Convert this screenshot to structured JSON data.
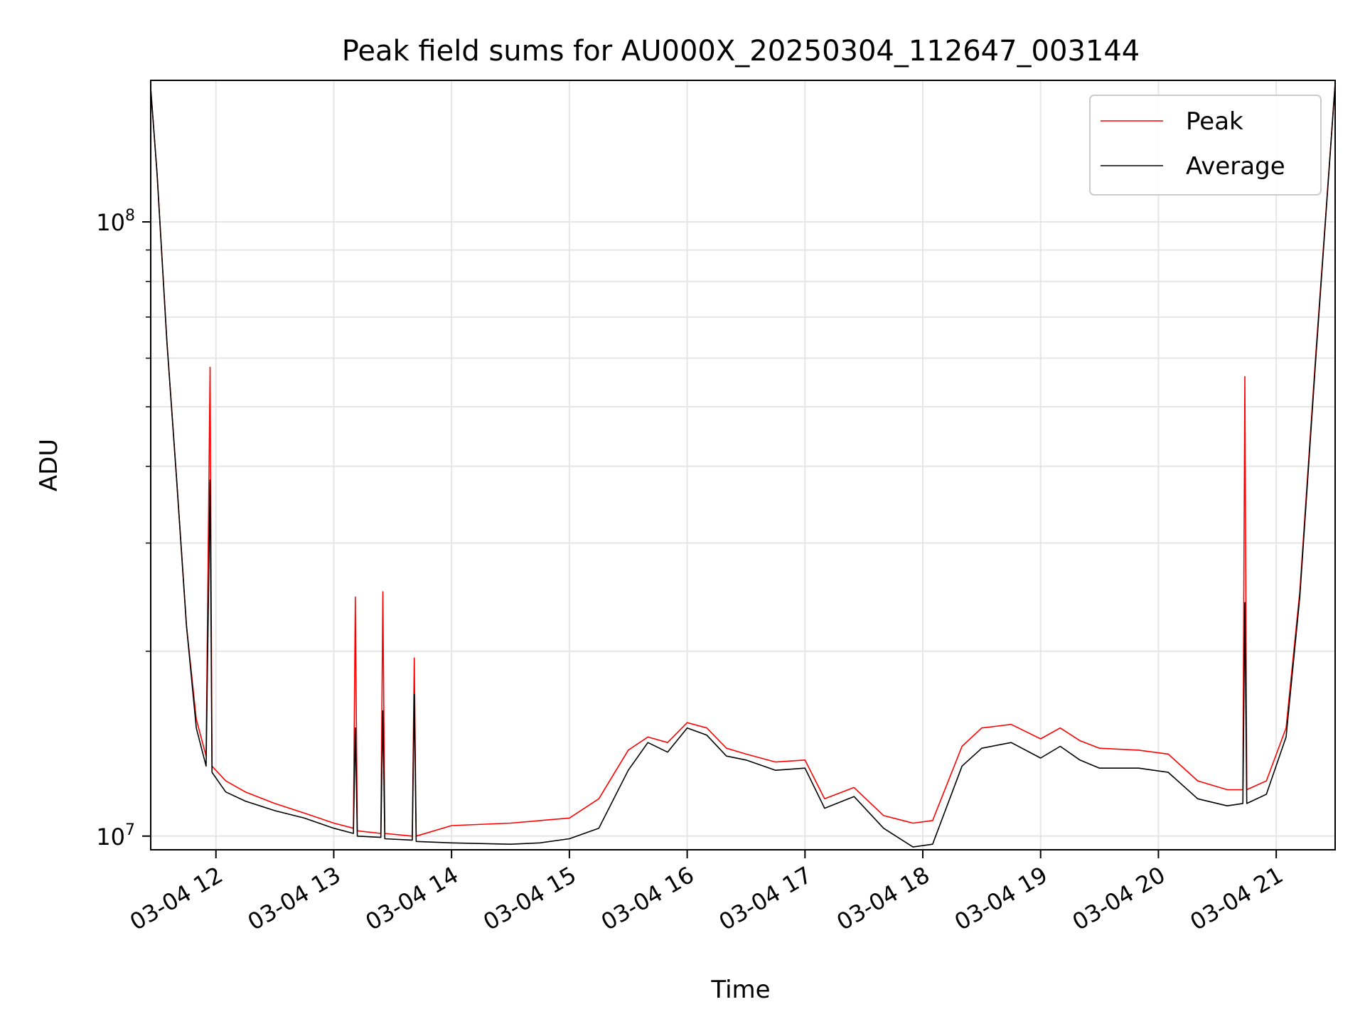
{
  "chart_data": {
    "type": "line",
    "title": "Peak field sums for AU000X_20250304_112647_003144",
    "xlabel": "Time",
    "ylabel": "ADU",
    "x_is_datetime": true,
    "xlim": [
      "2025-03-04T11:26:47",
      "2025-03-04T21:30:00"
    ],
    "ylim": [
      9500000,
      170000000
    ],
    "yscale": "log",
    "grid": true,
    "legend_position": "top-right",
    "x_ticks": [
      {
        "value": "2025-03-04T12:00:00",
        "label": "03-04 12"
      },
      {
        "value": "2025-03-04T13:00:00",
        "label": "03-04 13"
      },
      {
        "value": "2025-03-04T14:00:00",
        "label": "03-04 14"
      },
      {
        "value": "2025-03-04T15:00:00",
        "label": "03-04 15"
      },
      {
        "value": "2025-03-04T16:00:00",
        "label": "03-04 16"
      },
      {
        "value": "2025-03-04T17:00:00",
        "label": "03-04 17"
      },
      {
        "value": "2025-03-04T18:00:00",
        "label": "03-04 18"
      },
      {
        "value": "2025-03-04T19:00:00",
        "label": "03-04 19"
      },
      {
        "value": "2025-03-04T20:00:00",
        "label": "03-04 20"
      },
      {
        "value": "2025-03-04T21:00:00",
        "label": "03-04 21"
      }
    ],
    "y_ticks": [
      {
        "value": 10000000,
        "base": "10",
        "exp": "7"
      },
      {
        "value": 100000000,
        "base": "10",
        "exp": "8"
      }
    ],
    "series": [
      {
        "name": "Peak",
        "color": "#ff0000",
        "points": [
          [
            "2025-03-04T11:26:47",
            165000000
          ],
          [
            "2025-03-04T11:30:00",
            120000000
          ],
          [
            "2025-03-04T11:35:00",
            64000000
          ],
          [
            "2025-03-04T11:40:00",
            38000000
          ],
          [
            "2025-03-04T11:45:00",
            22000000
          ],
          [
            "2025-03-04T11:50:00",
            15500000
          ],
          [
            "2025-03-04T11:55:00",
            13500000
          ],
          [
            "2025-03-04T11:57:00",
            58000000
          ],
          [
            "2025-03-04T11:58:00",
            13000000
          ],
          [
            "2025-03-04T12:05:00",
            12300000
          ],
          [
            "2025-03-04T12:15:00",
            11800000
          ],
          [
            "2025-03-04T12:30:00",
            11300000
          ],
          [
            "2025-03-04T12:45:00",
            10900000
          ],
          [
            "2025-03-04T13:00:00",
            10500000
          ],
          [
            "2025-03-04T13:10:00",
            10300000
          ],
          [
            "2025-03-04T13:11:00",
            24500000
          ],
          [
            "2025-03-04T13:12:00",
            10200000
          ],
          [
            "2025-03-04T13:24:00",
            10100000
          ],
          [
            "2025-03-04T13:25:00",
            25000000
          ],
          [
            "2025-03-04T13:26:00",
            10100000
          ],
          [
            "2025-03-04T13:40:00",
            10000000
          ],
          [
            "2025-03-04T13:41:00",
            19500000
          ],
          [
            "2025-03-04T13:42:00",
            10000000
          ],
          [
            "2025-03-04T14:00:00",
            10400000
          ],
          [
            "2025-03-04T14:30:00",
            10500000
          ],
          [
            "2025-03-04T15:00:00",
            10700000
          ],
          [
            "2025-03-04T15:15:00",
            11500000
          ],
          [
            "2025-03-04T15:30:00",
            13800000
          ],
          [
            "2025-03-04T15:40:00",
            14500000
          ],
          [
            "2025-03-04T15:50:00",
            14200000
          ],
          [
            "2025-03-04T16:00:00",
            15300000
          ],
          [
            "2025-03-04T16:10:00",
            15000000
          ],
          [
            "2025-03-04T16:20:00",
            13900000
          ],
          [
            "2025-03-04T16:30:00",
            13600000
          ],
          [
            "2025-03-04T16:45:00",
            13200000
          ],
          [
            "2025-03-04T17:00:00",
            13300000
          ],
          [
            "2025-03-04T17:10:00",
            11500000
          ],
          [
            "2025-03-04T17:25:00",
            12000000
          ],
          [
            "2025-03-04T17:40:00",
            10800000
          ],
          [
            "2025-03-04T17:55:00",
            10500000
          ],
          [
            "2025-03-04T18:05:00",
            10600000
          ],
          [
            "2025-03-04T18:20:00",
            14000000
          ],
          [
            "2025-03-04T18:30:00",
            15000000
          ],
          [
            "2025-03-04T18:45:00",
            15200000
          ],
          [
            "2025-03-04T19:00:00",
            14400000
          ],
          [
            "2025-03-04T19:10:00",
            15000000
          ],
          [
            "2025-03-04T19:20:00",
            14300000
          ],
          [
            "2025-03-04T19:30:00",
            13900000
          ],
          [
            "2025-03-04T19:50:00",
            13800000
          ],
          [
            "2025-03-04T20:05:00",
            13600000
          ],
          [
            "2025-03-04T20:20:00",
            12300000
          ],
          [
            "2025-03-04T20:35:00",
            11900000
          ],
          [
            "2025-03-04T20:43:00",
            11900000
          ],
          [
            "2025-03-04T20:44:00",
            56000000
          ],
          [
            "2025-03-04T20:45:00",
            11900000
          ],
          [
            "2025-03-04T20:55:00",
            12300000
          ],
          [
            "2025-03-04T21:05:00",
            15000000
          ],
          [
            "2025-03-04T21:12:00",
            25000000
          ],
          [
            "2025-03-04T21:20:00",
            60000000
          ],
          [
            "2025-03-04T21:30:00",
            168000000
          ]
        ]
      },
      {
        "name": "Average",
        "color": "#000000",
        "points": [
          [
            "2025-03-04T11:26:47",
            165000000
          ],
          [
            "2025-03-04T11:30:00",
            120000000
          ],
          [
            "2025-03-04T11:35:00",
            64000000
          ],
          [
            "2025-03-04T11:40:00",
            38000000
          ],
          [
            "2025-03-04T11:45:00",
            22000000
          ],
          [
            "2025-03-04T11:50:00",
            15000000
          ],
          [
            "2025-03-04T11:55:00",
            13000000
          ],
          [
            "2025-03-04T11:57:00",
            38000000
          ],
          [
            "2025-03-04T11:58:00",
            12700000
          ],
          [
            "2025-03-04T12:05:00",
            11800000
          ],
          [
            "2025-03-04T12:15:00",
            11400000
          ],
          [
            "2025-03-04T12:30:00",
            11000000
          ],
          [
            "2025-03-04T12:45:00",
            10700000
          ],
          [
            "2025-03-04T13:00:00",
            10300000
          ],
          [
            "2025-03-04T13:10:00",
            10100000
          ],
          [
            "2025-03-04T13:11:00",
            15000000
          ],
          [
            "2025-03-04T13:12:00",
            10000000
          ],
          [
            "2025-03-04T13:24:00",
            9950000
          ],
          [
            "2025-03-04T13:25:00",
            16000000
          ],
          [
            "2025-03-04T13:26:00",
            9900000
          ],
          [
            "2025-03-04T13:40:00",
            9850000
          ],
          [
            "2025-03-04T13:41:00",
            17000000
          ],
          [
            "2025-03-04T13:42:00",
            9800000
          ],
          [
            "2025-03-04T14:00:00",
            9750000
          ],
          [
            "2025-03-04T14:30:00",
            9700000
          ],
          [
            "2025-03-04T14:45:00",
            9750000
          ],
          [
            "2025-03-04T15:00:00",
            9900000
          ],
          [
            "2025-03-04T15:15:00",
            10300000
          ],
          [
            "2025-03-04T15:30:00",
            12800000
          ],
          [
            "2025-03-04T15:40:00",
            14200000
          ],
          [
            "2025-03-04T15:50:00",
            13700000
          ],
          [
            "2025-03-04T16:00:00",
            15000000
          ],
          [
            "2025-03-04T16:10:00",
            14600000
          ],
          [
            "2025-03-04T16:20:00",
            13500000
          ],
          [
            "2025-03-04T16:30:00",
            13300000
          ],
          [
            "2025-03-04T16:45:00",
            12800000
          ],
          [
            "2025-03-04T17:00:00",
            12900000
          ],
          [
            "2025-03-04T17:10:00",
            11100000
          ],
          [
            "2025-03-04T17:25:00",
            11600000
          ],
          [
            "2025-03-04T17:40:00",
            10300000
          ],
          [
            "2025-03-04T17:55:00",
            9600000
          ],
          [
            "2025-03-04T18:05:00",
            9700000
          ],
          [
            "2025-03-04T18:20:00",
            13000000
          ],
          [
            "2025-03-04T18:30:00",
            13900000
          ],
          [
            "2025-03-04T18:45:00",
            14200000
          ],
          [
            "2025-03-04T19:00:00",
            13400000
          ],
          [
            "2025-03-04T19:10:00",
            14000000
          ],
          [
            "2025-03-04T19:20:00",
            13300000
          ],
          [
            "2025-03-04T19:30:00",
            12900000
          ],
          [
            "2025-03-04T19:50:00",
            12900000
          ],
          [
            "2025-03-04T20:05:00",
            12700000
          ],
          [
            "2025-03-04T20:20:00",
            11500000
          ],
          [
            "2025-03-04T20:35:00",
            11200000
          ],
          [
            "2025-03-04T20:43:00",
            11300000
          ],
          [
            "2025-03-04T20:44:00",
            24000000
          ],
          [
            "2025-03-04T20:45:00",
            11300000
          ],
          [
            "2025-03-04T20:55:00",
            11700000
          ],
          [
            "2025-03-04T21:05:00",
            14500000
          ],
          [
            "2025-03-04T21:12:00",
            24500000
          ],
          [
            "2025-03-04T21:20:00",
            59000000
          ],
          [
            "2025-03-04T21:30:00",
            168000000
          ]
        ]
      }
    ]
  }
}
